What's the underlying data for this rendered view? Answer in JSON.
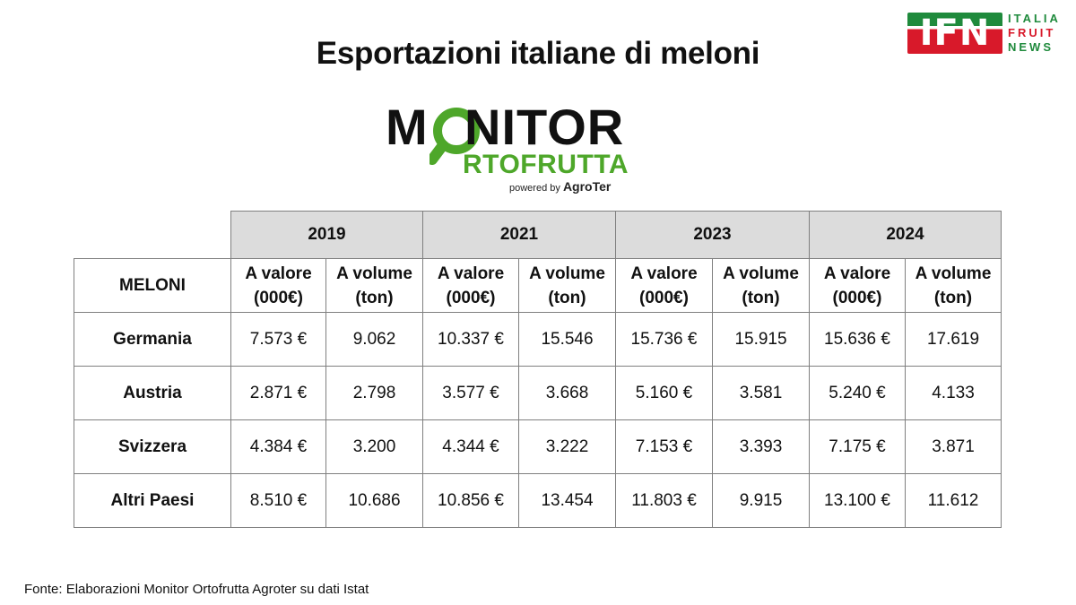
{
  "title": "Esportazioni italiane di meloni",
  "ifn_logo": {
    "letters": "IFN",
    "line1": "ITALIA",
    "line2": "FRUIT",
    "line3": "NEWS"
  },
  "monitor_logo": {
    "word1_first": "M",
    "word1_rest": "NITOR",
    "word2": "RTOFRUTTA",
    "powered_prefix": "powered by",
    "powered_brand": "AgroTer",
    "colors": {
      "green": "#4ea72a",
      "dark": "#111111"
    }
  },
  "source": "Fonte: Elaborazioni Monitor Ortofrutta Agroter su dati Istat",
  "chart_data": {
    "type": "table",
    "corner_label": "MELONI",
    "years": [
      "2019",
      "2021",
      "2023",
      "2024"
    ],
    "subheaders": {
      "value": [
        "A valore",
        "(000€)"
      ],
      "volume": [
        "A volume",
        "(ton)"
      ]
    },
    "rows": [
      {
        "country": "Germania",
        "cells": [
          "7.573 €",
          "9.062",
          "10.337 €",
          "15.546",
          "15.736 €",
          "15.915",
          "15.636 €",
          "17.619"
        ]
      },
      {
        "country": "Austria",
        "cells": [
          "2.871 €",
          "2.798",
          "3.577 €",
          "3.668",
          "5.160 €",
          "3.581",
          "5.240 €",
          "4.133"
        ]
      },
      {
        "country": "Svizzera",
        "cells": [
          "4.384 €",
          "3.200",
          "4.344 €",
          "3.222",
          "7.153 €",
          "3.393",
          "7.175 €",
          "3.871"
        ]
      },
      {
        "country": "Altri Paesi",
        "cells": [
          "8.510 €",
          "10.686",
          "10.856 €",
          "13.454",
          "11.803 €",
          "9.915",
          "13.100 €",
          "11.612"
        ]
      }
    ],
    "header_fill": "#dcdcdc"
  }
}
